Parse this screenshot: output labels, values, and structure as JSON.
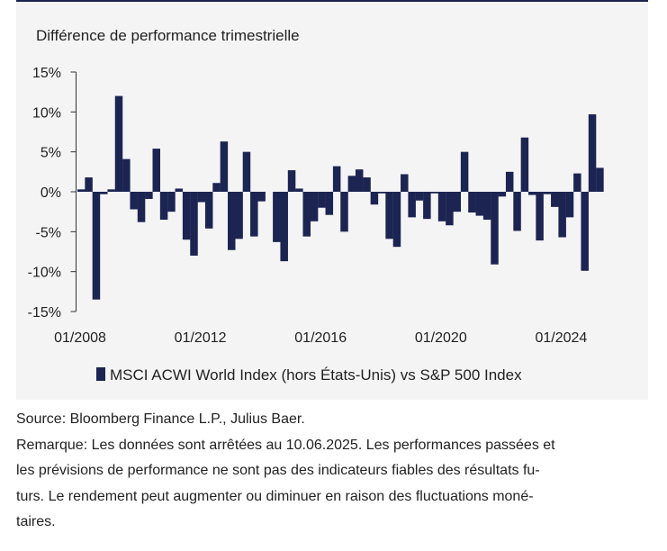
{
  "colors": {
    "bar": "#1c2452",
    "top_rule": "#1b2250",
    "axis": "#333333"
  },
  "chart_data": {
    "type": "bar",
    "title": "Différence de performance trimestrielle",
    "x": [
      "01/2008",
      "04/2008",
      "07/2008",
      "10/2008",
      "01/2009",
      "04/2009",
      "07/2009",
      "10/2009",
      "01/2010",
      "04/2010",
      "07/2010",
      "10/2010",
      "01/2011",
      "04/2011",
      "07/2011",
      "10/2011",
      "01/2012",
      "04/2012",
      "07/2012",
      "10/2012",
      "01/2013",
      "04/2013",
      "07/2013",
      "10/2013",
      "01/2014",
      "04/2014",
      "07/2014",
      "10/2014",
      "01/2015",
      "04/2015",
      "07/2015",
      "10/2015",
      "01/2016",
      "04/2016",
      "07/2016",
      "10/2016",
      "01/2017",
      "04/2017",
      "07/2017",
      "10/2017",
      "01/2018",
      "04/2018",
      "07/2018",
      "10/2018",
      "01/2019",
      "04/2019",
      "07/2019",
      "10/2019",
      "01/2020",
      "04/2020",
      "07/2020",
      "10/2020",
      "01/2021",
      "04/2021",
      "07/2021",
      "10/2021",
      "01/2022",
      "04/2022",
      "07/2022",
      "10/2022",
      "01/2023",
      "04/2023",
      "07/2023",
      "10/2023",
      "01/2024",
      "04/2024",
      "07/2024",
      "10/2024",
      "01/2025",
      "04/2025"
    ],
    "series": [
      {
        "name": "MSCI ACWI World Index (hors États-Unis) vs S&P 500 Index",
        "values": [
          0.3,
          1.8,
          -13.5,
          -0.3,
          0.3,
          12.0,
          4.1,
          -2.2,
          -3.8,
          -0.9,
          5.4,
          -3.5,
          -2.5,
          0.4,
          -6.0,
          -8.0,
          -1.3,
          -4.6,
          1.1,
          6.3,
          -7.3,
          -5.9,
          5.0,
          -5.6,
          -1.2,
          0.0,
          -6.3,
          -8.7,
          2.7,
          0.4,
          -5.6,
          -3.7,
          -2.0,
          -2.9,
          3.2,
          -5.0,
          2.0,
          2.8,
          1.8,
          -1.6,
          -0.2,
          -5.9,
          -6.9,
          2.2,
          -3.2,
          -1.1,
          -3.4,
          -0.2,
          -3.7,
          -4.2,
          -2.5,
          5.0,
          -2.6,
          -3.0,
          -3.5,
          -9.1,
          -0.6,
          2.5,
          -4.9,
          6.8,
          -0.4,
          -6.1,
          -0.3,
          -1.9,
          -5.7,
          -3.2,
          2.3,
          -9.9,
          9.7,
          3.0
        ]
      }
    ],
    "y_ticks": [
      15,
      10,
      5,
      0,
      -5,
      -10,
      -15
    ],
    "y_tick_labels": [
      "15%",
      "10%",
      "5%",
      "0%",
      "-5%",
      "-10%",
      "-15%"
    ],
    "x_tick_labels": [
      "01/2008",
      "01/2012",
      "01/2016",
      "01/2020",
      "01/2024"
    ],
    "ylim": [
      -15,
      15
    ],
    "grid": false,
    "legend_position": "bottom-left"
  },
  "footer": {
    "source": "Source: Bloomberg Finance L.P., Julius Baer.",
    "remark_lines": [
      "Remarque: Les données sont arrêtées au 10.06.2025. Les performances passées et",
      "les prévisions de performance ne sont pas des indicateurs fiables des résultats fu-",
      "turs. Le rendement peut augmenter ou diminuer en raison des fluctuations moné-",
      "taires."
    ]
  }
}
